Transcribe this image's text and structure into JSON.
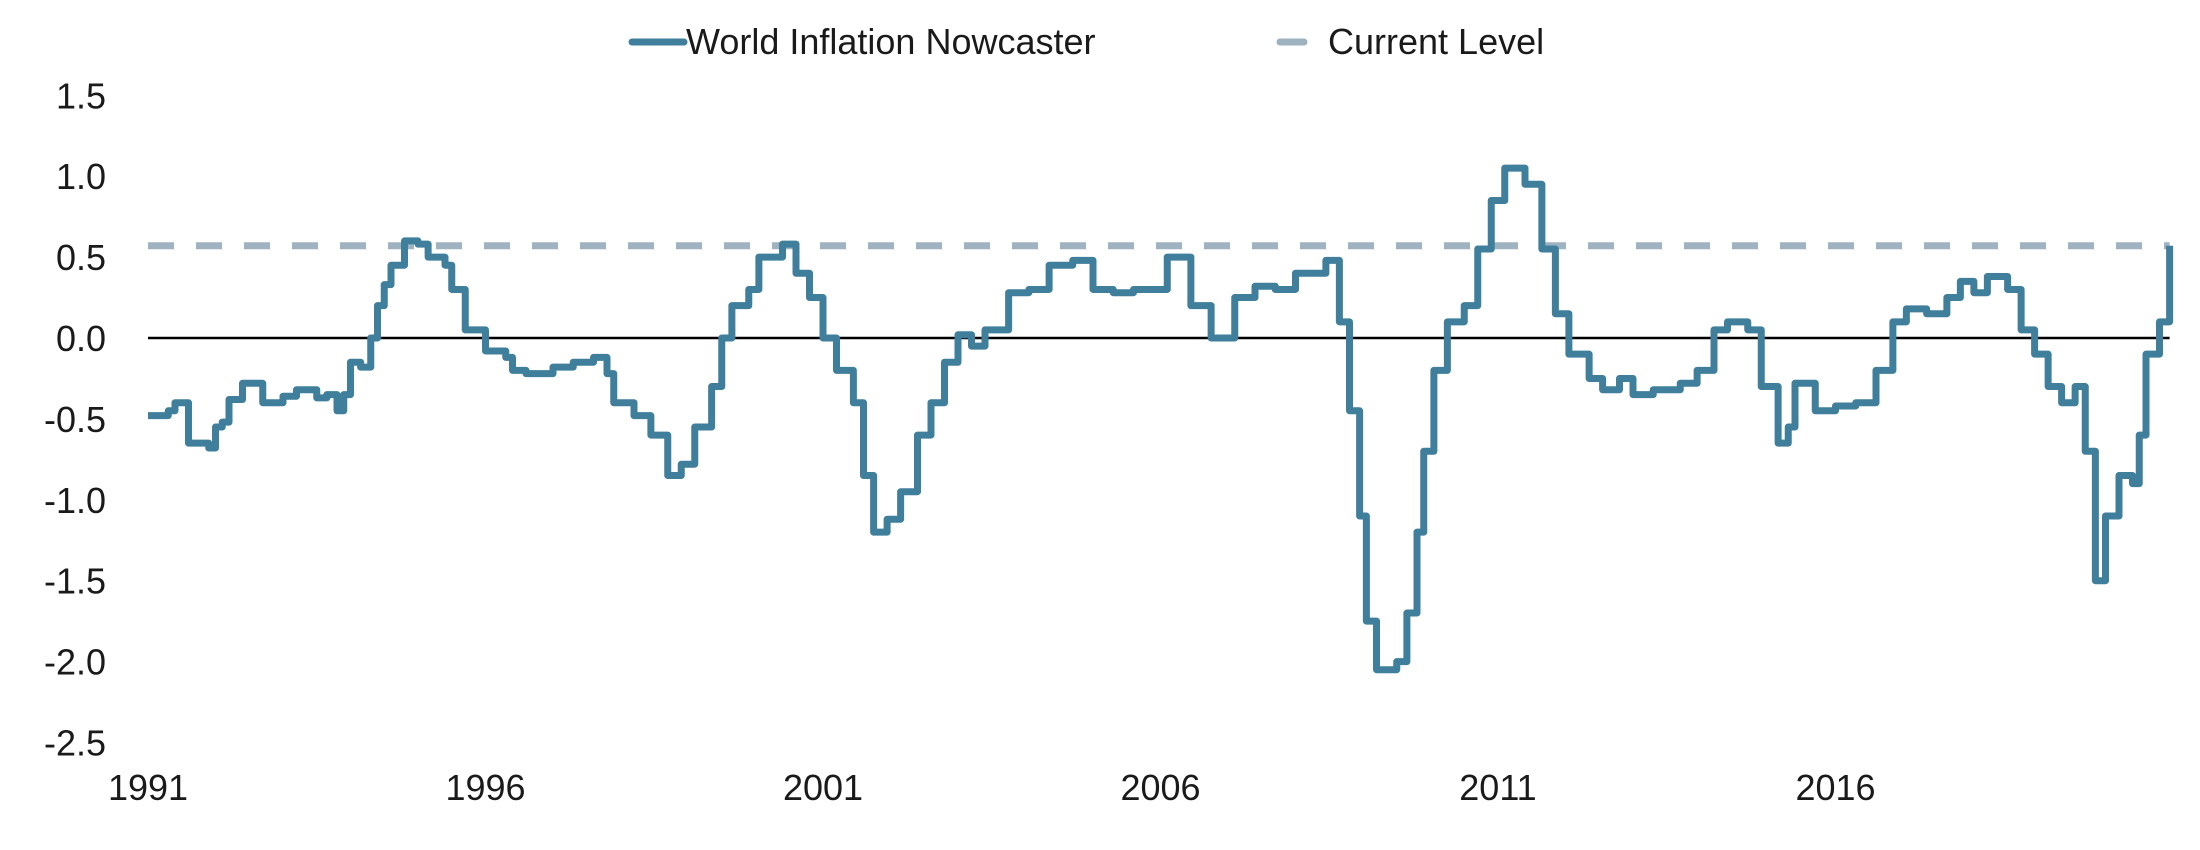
{
  "chart_data": {
    "type": "line",
    "title": "",
    "xlabel": "",
    "ylabel": "",
    "xlim": [
      1991,
      2021
    ],
    "ylim": [
      -2.5,
      1.5
    ],
    "grid": false,
    "legend_position": "top-center",
    "x_ticks": [
      "1991",
      "1996",
      "2001",
      "2006",
      "2011",
      "2016"
    ],
    "y_ticks": [
      "1.5",
      "1.0",
      "0.5",
      "0.0",
      "-0.5",
      "-1.0",
      "-1.5",
      "-2.0",
      "-2.5"
    ],
    "colors": {
      "series": "#3f7f9c",
      "current_level": "#9fb2bf",
      "zero_line": "#000000"
    },
    "series": [
      {
        "name": "World Inflation Nowcaster",
        "style": "step",
        "points": [
          [
            1991.0,
            -0.48
          ],
          [
            1991.3,
            -0.45
          ],
          [
            1991.4,
            -0.4
          ],
          [
            1991.6,
            -0.65
          ],
          [
            1991.9,
            -0.68
          ],
          [
            1992.0,
            -0.55
          ],
          [
            1992.1,
            -0.52
          ],
          [
            1992.2,
            -0.38
          ],
          [
            1992.4,
            -0.28
          ],
          [
            1992.55,
            -0.28
          ],
          [
            1992.7,
            -0.4
          ],
          [
            1993.0,
            -0.36
          ],
          [
            1993.2,
            -0.32
          ],
          [
            1993.5,
            -0.37
          ],
          [
            1993.65,
            -0.35
          ],
          [
            1993.8,
            -0.45
          ],
          [
            1993.9,
            -0.35
          ],
          [
            1994.0,
            -0.15
          ],
          [
            1994.15,
            -0.18
          ],
          [
            1994.3,
            0.0
          ],
          [
            1994.4,
            0.2
          ],
          [
            1994.5,
            0.33
          ],
          [
            1994.6,
            0.45
          ],
          [
            1994.8,
            0.6
          ],
          [
            1995.0,
            0.58
          ],
          [
            1995.15,
            0.5
          ],
          [
            1995.4,
            0.45
          ],
          [
            1995.5,
            0.3
          ],
          [
            1995.7,
            0.05
          ],
          [
            1996.0,
            -0.08
          ],
          [
            1996.3,
            -0.12
          ],
          [
            1996.4,
            -0.2
          ],
          [
            1996.6,
            -0.22
          ],
          [
            1997.0,
            -0.18
          ],
          [
            1997.3,
            -0.15
          ],
          [
            1997.6,
            -0.12
          ],
          [
            1997.8,
            -0.22
          ],
          [
            1997.9,
            -0.4
          ],
          [
            1998.2,
            -0.48
          ],
          [
            1998.45,
            -0.6
          ],
          [
            1998.7,
            -0.85
          ],
          [
            1998.9,
            -0.78
          ],
          [
            1999.1,
            -0.55
          ],
          [
            1999.35,
            -0.3
          ],
          [
            1999.5,
            0.0
          ],
          [
            1999.65,
            0.2
          ],
          [
            1999.9,
            0.3
          ],
          [
            2000.05,
            0.5
          ],
          [
            2000.4,
            0.58
          ],
          [
            2000.6,
            0.4
          ],
          [
            2000.8,
            0.25
          ],
          [
            2001.0,
            0.0
          ],
          [
            2001.2,
            -0.2
          ],
          [
            2001.45,
            -0.4
          ],
          [
            2001.6,
            -0.85
          ],
          [
            2001.75,
            -1.2
          ],
          [
            2001.95,
            -1.12
          ],
          [
            2002.15,
            -0.95
          ],
          [
            2002.4,
            -0.6
          ],
          [
            2002.6,
            -0.4
          ],
          [
            2002.8,
            -0.15
          ],
          [
            2003.0,
            0.02
          ],
          [
            2003.2,
            -0.05
          ],
          [
            2003.4,
            0.05
          ],
          [
            2003.75,
            0.28
          ],
          [
            2004.05,
            0.3
          ],
          [
            2004.35,
            0.45
          ],
          [
            2004.7,
            0.48
          ],
          [
            2005.0,
            0.3
          ],
          [
            2005.3,
            0.28
          ],
          [
            2005.6,
            0.3
          ],
          [
            2005.9,
            0.3
          ],
          [
            2006.1,
            0.5
          ],
          [
            2006.45,
            0.2
          ],
          [
            2006.75,
            0.0
          ],
          [
            2007.1,
            0.25
          ],
          [
            2007.4,
            0.32
          ],
          [
            2007.7,
            0.3
          ],
          [
            2008.0,
            0.4
          ],
          [
            2008.45,
            0.48
          ],
          [
            2008.65,
            0.1
          ],
          [
            2008.8,
            -0.45
          ],
          [
            2008.95,
            -1.1
          ],
          [
            2009.05,
            -1.75
          ],
          [
            2009.2,
            -2.05
          ],
          [
            2009.5,
            -2.0
          ],
          [
            2009.65,
            -1.7
          ],
          [
            2009.8,
            -1.2
          ],
          [
            2009.9,
            -0.7
          ],
          [
            2010.05,
            -0.2
          ],
          [
            2010.25,
            0.1
          ],
          [
            2010.5,
            0.2
          ],
          [
            2010.7,
            0.55
          ],
          [
            2010.9,
            0.85
          ],
          [
            2011.1,
            1.05
          ],
          [
            2011.4,
            0.95
          ],
          [
            2011.65,
            0.55
          ],
          [
            2011.85,
            0.15
          ],
          [
            2012.05,
            -0.1
          ],
          [
            2012.35,
            -0.25
          ],
          [
            2012.55,
            -0.32
          ],
          [
            2012.8,
            -0.25
          ],
          [
            2013.0,
            -0.35
          ],
          [
            2013.3,
            -0.32
          ],
          [
            2013.7,
            -0.28
          ],
          [
            2013.95,
            -0.2
          ],
          [
            2014.2,
            0.05
          ],
          [
            2014.4,
            0.1
          ],
          [
            2014.7,
            0.05
          ],
          [
            2014.9,
            -0.3
          ],
          [
            2015.15,
            -0.65
          ],
          [
            2015.3,
            -0.55
          ],
          [
            2015.4,
            -0.28
          ],
          [
            2015.7,
            -0.45
          ],
          [
            2016.0,
            -0.42
          ],
          [
            2016.3,
            -0.4
          ],
          [
            2016.6,
            -0.2
          ],
          [
            2016.85,
            0.1
          ],
          [
            2017.05,
            0.18
          ],
          [
            2017.35,
            0.15
          ],
          [
            2017.65,
            0.25
          ],
          [
            2017.85,
            0.35
          ],
          [
            2018.05,
            0.28
          ],
          [
            2018.25,
            0.38
          ],
          [
            2018.55,
            0.3
          ],
          [
            2018.75,
            0.05
          ],
          [
            2018.95,
            -0.1
          ],
          [
            2019.15,
            -0.3
          ],
          [
            2019.35,
            -0.4
          ],
          [
            2019.55,
            -0.3
          ],
          [
            2019.7,
            -0.7
          ],
          [
            2019.85,
            -1.5
          ],
          [
            2020.0,
            -1.1
          ],
          [
            2020.2,
            -0.85
          ],
          [
            2020.4,
            -0.9
          ],
          [
            2020.5,
            -0.6
          ],
          [
            2020.6,
            -0.1
          ],
          [
            2020.8,
            0.1
          ],
          [
            2020.95,
            0.57
          ]
        ]
      },
      {
        "name": "Current Level",
        "style": "dashed",
        "value": 0.57
      }
    ]
  }
}
